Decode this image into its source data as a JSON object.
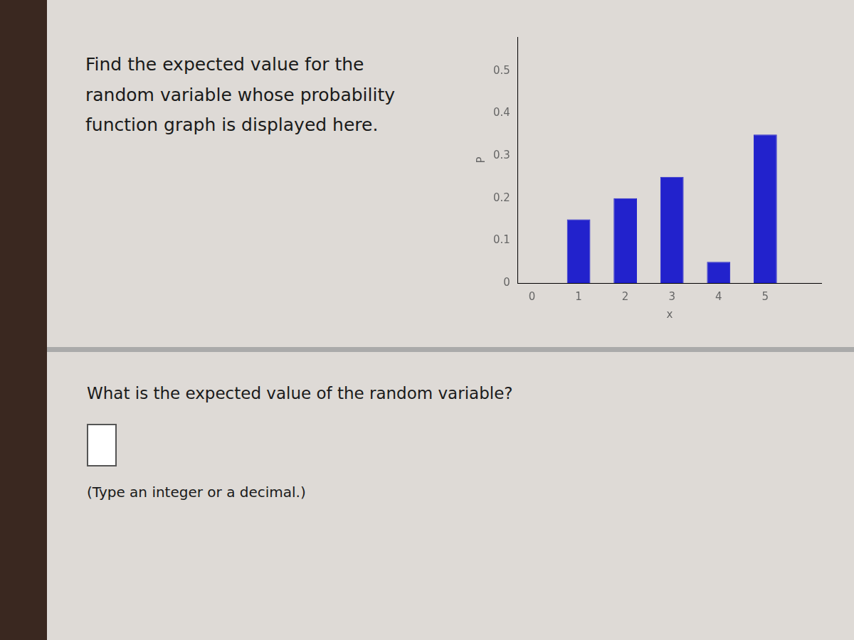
{
  "chart_data": {
    "type": "bar",
    "title": "Find the expected value for the\nrandom variable whose probability\nfunction graph is displayed here.",
    "x": [
      1,
      2,
      3,
      4,
      5
    ],
    "values": [
      0.15,
      0.2,
      0.25,
      0.05,
      0.35
    ],
    "color": "#2222cc",
    "xlabel": "x",
    "ylabel": "P",
    "xlim": [
      -0.3,
      6.2
    ],
    "xticks": [
      0,
      1,
      2,
      3,
      4,
      5
    ],
    "ylim": [
      0,
      0.58
    ],
    "yticks": [
      0,
      0.1,
      0.2,
      0.3,
      0.4,
      0.5
    ],
    "grid": false,
    "annotations": [
      "What is the expected value of the random variable?",
      "(Type an integer or a decimal.)"
    ]
  }
}
